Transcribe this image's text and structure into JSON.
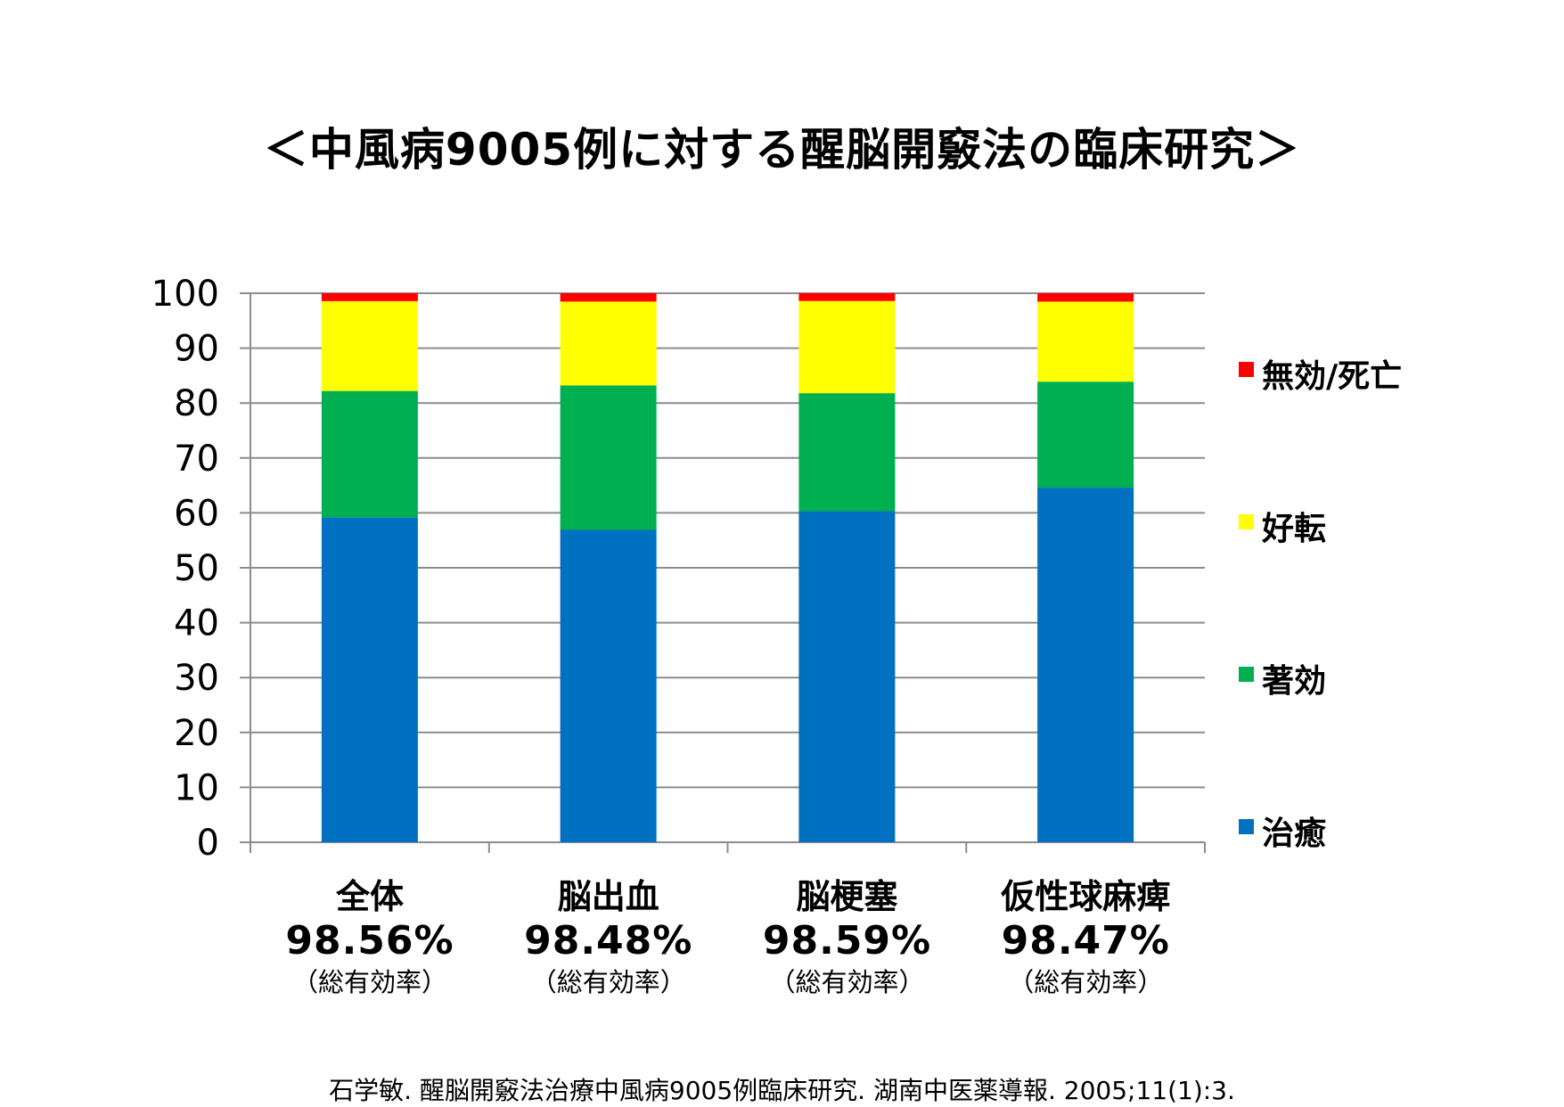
{
  "title": "＜中風病9005例に対する醒脳開竅法の臨床研究＞",
  "citation": "石学敏. 醒脳開竅法治療中風病9005例臨床研究. 湖南中医薬導報. 2005;11(1):3.",
  "chart_data": {
    "type": "bar",
    "stacked": true,
    "categories": [
      "全体",
      "脳出血",
      "脳梗塞",
      "仮性球麻痺"
    ],
    "category_rates": [
      "98.56%",
      "98.48%",
      "98.59%",
      "98.47%"
    ],
    "category_rate_label": "（総有効率）",
    "ylim": [
      0,
      100
    ],
    "yticks": [
      0,
      10,
      20,
      30,
      40,
      50,
      60,
      70,
      80,
      90,
      100
    ],
    "grid": true,
    "legend_position": "right",
    "series": [
      {
        "name": "治癒",
        "color": "#0070C0",
        "values": [
          59.2,
          56.9,
          60.3,
          64.6
        ]
      },
      {
        "name": "著効",
        "color": "#00B050",
        "values": [
          23.0,
          26.3,
          21.5,
          19.3
        ]
      },
      {
        "name": "好転",
        "color": "#FFFF00",
        "values": [
          16.36,
          15.28,
          16.79,
          14.57
        ]
      },
      {
        "name": "無効/死亡",
        "color": "#FF0000",
        "values": [
          1.44,
          1.52,
          1.41,
          1.53
        ]
      }
    ]
  }
}
